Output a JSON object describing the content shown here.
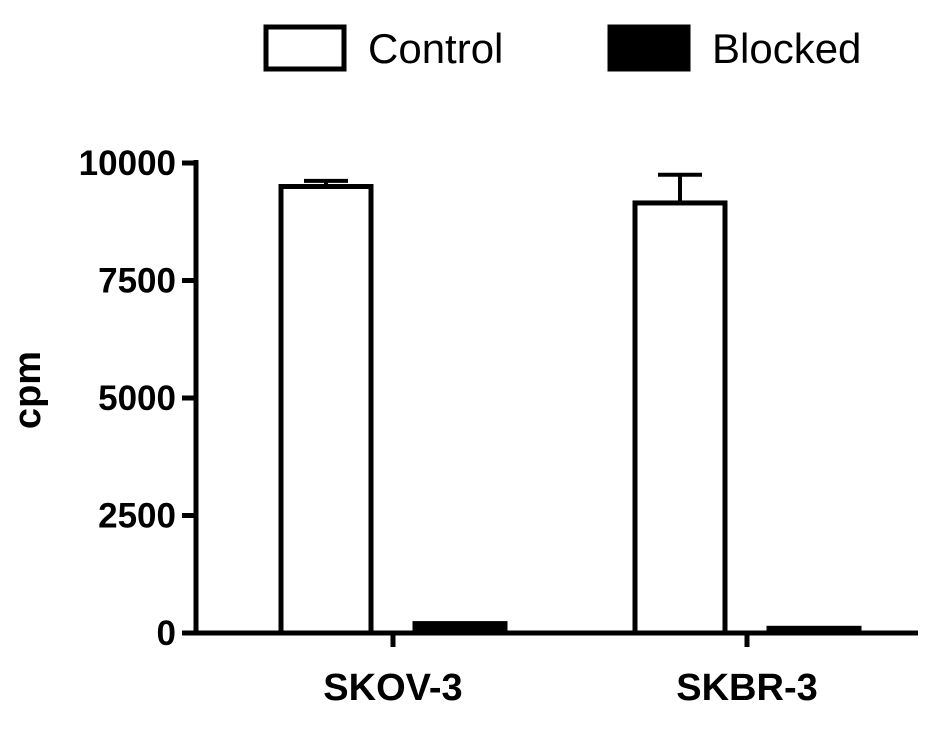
{
  "chart_data": {
    "type": "bar",
    "ylabel": "cpm",
    "xlabel": "",
    "ylim": [
      0,
      10000
    ],
    "yticks": [
      "0",
      "2500",
      "5000",
      "7500",
      "10000"
    ],
    "categories": [
      "SKOV-3",
      "SKBR-3"
    ],
    "series": [
      {
        "name": "Control",
        "values": [
          9500,
          9150
        ],
        "errors": [
          120,
          600
        ],
        "fill": "#ffffff",
        "stroke": "#000000"
      },
      {
        "name": "Blocked",
        "values": [
          200,
          100
        ],
        "errors": [
          0,
          0
        ],
        "fill": "#000000",
        "stroke": "#000000"
      }
    ],
    "legend": {
      "position": "top",
      "items": [
        "Control",
        "Blocked"
      ]
    },
    "grid": false
  }
}
